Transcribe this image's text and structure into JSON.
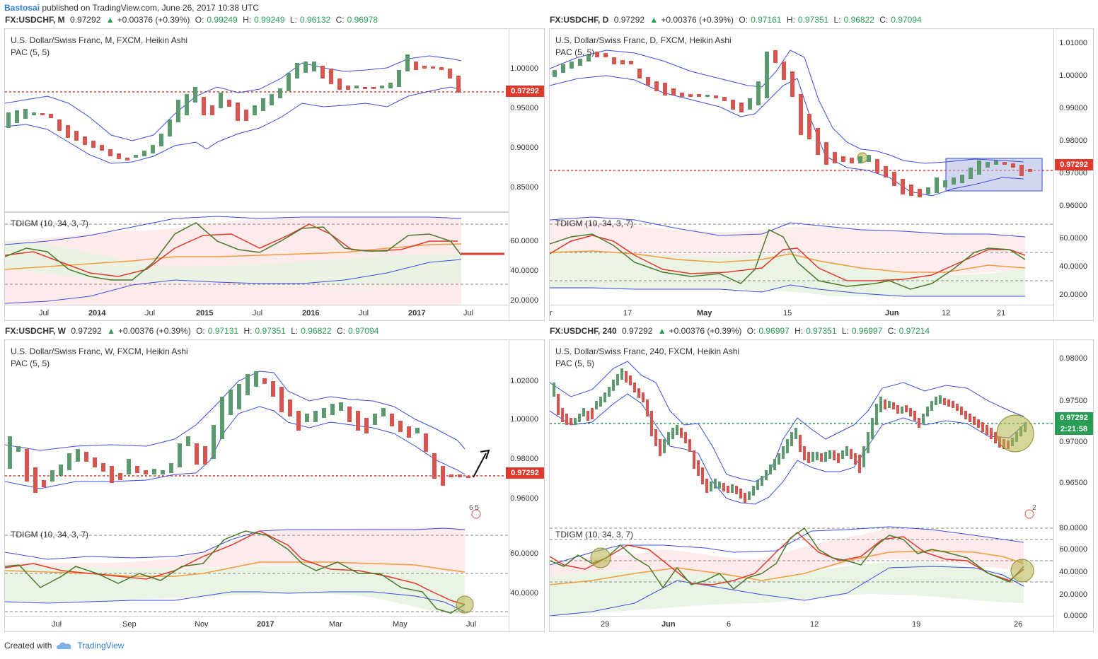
{
  "header": {
    "author": "Bastosai",
    "published": "published on TradingView.com, June 26, 2017 10:38 UTC"
  },
  "footer": {
    "created_with": "Created with",
    "brand": "TradingView"
  },
  "colors": {
    "up": "#5b9a6e",
    "down": "#d9534f",
    "accent": "#2f7ed8",
    "priceline": "#e0392b",
    "tdi_green": "#4a7a2a",
    "tdi_red": "#e0392b",
    "tdi_orange": "#f39a3c",
    "band_blue": "#3a4ee0"
  },
  "panels": [
    {
      "symbol": "FX:USDCHF, M",
      "last": "0.97292",
      "change": "+0.00376 (+0.39%)",
      "o_label": "O:",
      "o": "0.99249",
      "h_label": "H:",
      "h": "0.99249",
      "l_label": "L:",
      "l": "0.96132",
      "c_label": "C:",
      "c": "0.96978",
      "title": "U.S. Dollar/Swiss Franc, M, FXCM, Heikin Ashi",
      "pac": "PAC (5, 5)",
      "tdi": "TDIGM (10, 34, 3, 7)",
      "price_labels": [
        "1.00000",
        "0.95000",
        "0.90000",
        "0.85000"
      ],
      "tdi_labels": [
        "60.0000",
        "40.0000",
        "20.0000"
      ],
      "price_tag": "0.97292",
      "x_labels": [
        "Jul",
        "2014",
        "Jul",
        "2015",
        "Jul",
        "2016",
        "Jul",
        "2017",
        "Jul"
      ]
    },
    {
      "symbol": "FX:USDCHF, D",
      "last": "0.97292",
      "change": "+0.00376 (+0.39%)",
      "o_label": "O:",
      "o": "0.97161",
      "h_label": "H:",
      "h": "0.97351",
      "l_label": "L:",
      "l": "0.96822",
      "c_label": "C:",
      "c": "0.97094",
      "title": "U.S. Dollar/Swiss Franc, D, FXCM, Heikin Ashi",
      "pac": "PAC (5, 5)",
      "tdi": "TDIGM (10, 34, 3, 7)",
      "price_labels": [
        "1.01000",
        "1.00000",
        "0.99000",
        "0.98000",
        "0.97000",
        "0.96000"
      ],
      "tdi_labels": [
        "60.0000",
        "40.0000",
        "20.0000"
      ],
      "price_tag": "0.97292",
      "x_labels": [
        "r",
        "17",
        "May",
        "15",
        "Jun",
        "12",
        "21"
      ]
    },
    {
      "symbol": "FX:USDCHF, W",
      "last": "0.97292",
      "change": "+0.00376 (+0.39%)",
      "o_label": "O:",
      "o": "0.97131",
      "h_label": "H:",
      "h": "0.97351",
      "l_label": "L:",
      "l": "0.96822",
      "c_label": "C:",
      "c": "0.97094",
      "title": "U.S. Dollar/Swiss Franc, W, FXCM, Heikin Ashi",
      "pac": "PAC (5, 5)",
      "tdi": "TDIGM (10, 34, 3, 7)",
      "price_labels": [
        "1.02000",
        "1.00000",
        "0.98000",
        "0.96000"
      ],
      "tdi_labels": [
        "60.0000",
        "40.0000"
      ],
      "price_tag": "0.97292",
      "events": "6 5",
      "x_labels": [
        "Jul",
        "Sep",
        "Nov",
        "2017",
        "Mar",
        "May",
        "Jul"
      ]
    },
    {
      "symbol": "FX:USDCHF, 240",
      "last": "0.97292",
      "change": "+0.00376 (+0.39%)",
      "o_label": "O:",
      "o": "0.96997",
      "h_label": "H:",
      "h": "0.97351",
      "l_label": "L:",
      "l": "0.96997",
      "c_label": "C:",
      "c": "0.97214",
      "title": "U.S. Dollar/Swiss Franc, 240, FXCM, Heikin Ashi",
      "pac": "PAC (5, 5)",
      "tdi": "TDIGM (10, 34, 3, 7)",
      "price_labels": [
        "0.98000",
        "0.97500",
        "0.97000",
        "0.96500"
      ],
      "tdi_labels": [
        "80.0000",
        "60.0000",
        "40.0000",
        "20.0000",
        "0.0000"
      ],
      "price_tag": "0.97292",
      "countdown": "2:21:58",
      "events": "2",
      "x_labels": [
        "29",
        "Jun",
        "6",
        "12",
        "19",
        "26"
      ]
    }
  ]
}
